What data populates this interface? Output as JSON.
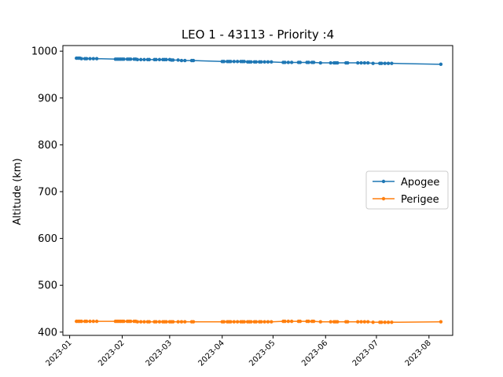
{
  "chart_data": {
    "type": "line",
    "title": "LEO 1 - 43113 - Priority :4",
    "xlabel": "",
    "ylabel": "Altitude (km)",
    "ylim": [
      393,
      1012
    ],
    "xlim": [
      "2022-12-28",
      "2023-08-15"
    ],
    "yticks": [
      400,
      500,
      600,
      700,
      800,
      900,
      1000
    ],
    "xticks": [
      "2023-01",
      "2023-02",
      "2023-03",
      "2023-04",
      "2023-05",
      "2023-06",
      "2023-07",
      "2023-08"
    ],
    "grid": false,
    "legend_position": "center-right",
    "series": [
      {
        "name": "Apogee",
        "color": "#1f77b4",
        "marker": "circle",
        "points": [
          [
            "2023-01-05",
            985
          ],
          [
            "2023-01-06",
            985
          ],
          [
            "2023-01-07",
            985
          ],
          [
            "2023-01-08",
            984
          ],
          [
            "2023-01-10",
            984
          ],
          [
            "2023-01-11",
            984
          ],
          [
            "2023-01-13",
            984
          ],
          [
            "2023-01-15",
            984
          ],
          [
            "2023-01-17",
            984
          ],
          [
            "2023-01-28",
            983
          ],
          [
            "2023-01-29",
            983
          ],
          [
            "2023-01-30",
            983
          ],
          [
            "2023-01-31",
            983
          ],
          [
            "2023-02-01",
            983
          ],
          [
            "2023-02-02",
            983
          ],
          [
            "2023-02-04",
            983
          ],
          [
            "2023-02-05",
            983
          ],
          [
            "2023-02-06",
            983
          ],
          [
            "2023-02-08",
            983
          ],
          [
            "2023-02-09",
            983
          ],
          [
            "2023-02-10",
            982
          ],
          [
            "2023-02-12",
            982
          ],
          [
            "2023-02-14",
            982
          ],
          [
            "2023-02-16",
            982
          ],
          [
            "2023-02-17",
            982
          ],
          [
            "2023-02-20",
            982
          ],
          [
            "2023-02-21",
            982
          ],
          [
            "2023-02-23",
            982
          ],
          [
            "2023-02-25",
            982
          ],
          [
            "2023-02-26",
            982
          ],
          [
            "2023-02-27",
            982
          ],
          [
            "2023-03-01",
            982
          ],
          [
            "2023-03-02",
            981
          ],
          [
            "2023-03-03",
            981
          ],
          [
            "2023-03-06",
            981
          ],
          [
            "2023-03-08",
            980
          ],
          [
            "2023-03-10",
            980
          ],
          [
            "2023-03-14",
            980
          ],
          [
            "2023-03-15",
            980
          ],
          [
            "2023-04-01",
            978
          ],
          [
            "2023-04-02",
            978
          ],
          [
            "2023-04-04",
            978
          ],
          [
            "2023-04-05",
            978
          ],
          [
            "2023-04-06",
            978
          ],
          [
            "2023-04-08",
            978
          ],
          [
            "2023-04-10",
            978
          ],
          [
            "2023-04-12",
            978
          ],
          [
            "2023-04-13",
            978
          ],
          [
            "2023-04-14",
            978
          ],
          [
            "2023-04-16",
            977
          ],
          [
            "2023-04-17",
            977
          ],
          [
            "2023-04-18",
            977
          ],
          [
            "2023-04-20",
            977
          ],
          [
            "2023-04-21",
            977
          ],
          [
            "2023-04-23",
            977
          ],
          [
            "2023-04-24",
            977
          ],
          [
            "2023-04-26",
            977
          ],
          [
            "2023-04-28",
            977
          ],
          [
            "2023-04-30",
            977
          ],
          [
            "2023-05-07",
            976
          ],
          [
            "2023-05-08",
            976
          ],
          [
            "2023-05-10",
            976
          ],
          [
            "2023-05-12",
            976
          ],
          [
            "2023-05-16",
            976
          ],
          [
            "2023-05-17",
            976
          ],
          [
            "2023-05-21",
            976
          ],
          [
            "2023-05-22",
            976
          ],
          [
            "2023-05-24",
            976
          ],
          [
            "2023-05-25",
            976
          ],
          [
            "2023-05-29",
            975
          ],
          [
            "2023-06-04",
            975
          ],
          [
            "2023-06-06",
            975
          ],
          [
            "2023-06-07",
            975
          ],
          [
            "2023-06-08",
            975
          ],
          [
            "2023-06-13",
            975
          ],
          [
            "2023-06-14",
            975
          ],
          [
            "2023-06-20",
            975
          ],
          [
            "2023-06-22",
            975
          ],
          [
            "2023-06-24",
            975
          ],
          [
            "2023-06-26",
            975
          ],
          [
            "2023-06-29",
            974
          ],
          [
            "2023-07-03",
            974
          ],
          [
            "2023-07-04",
            974
          ],
          [
            "2023-07-06",
            974
          ],
          [
            "2023-07-08",
            974
          ],
          [
            "2023-07-10",
            974
          ],
          [
            "2023-08-08",
            972
          ]
        ]
      },
      {
        "name": "Perigee",
        "color": "#ff7f0e",
        "marker": "circle",
        "points": [
          [
            "2023-01-05",
            423
          ],
          [
            "2023-01-06",
            423
          ],
          [
            "2023-01-07",
            423
          ],
          [
            "2023-01-08",
            423
          ],
          [
            "2023-01-10",
            423
          ],
          [
            "2023-01-11",
            423
          ],
          [
            "2023-01-13",
            423
          ],
          [
            "2023-01-15",
            423
          ],
          [
            "2023-01-17",
            423
          ],
          [
            "2023-01-28",
            423
          ],
          [
            "2023-01-29",
            423
          ],
          [
            "2023-01-30",
            423
          ],
          [
            "2023-01-31",
            423
          ],
          [
            "2023-02-01",
            423
          ],
          [
            "2023-02-02",
            423
          ],
          [
            "2023-02-04",
            423
          ],
          [
            "2023-02-05",
            423
          ],
          [
            "2023-02-06",
            423
          ],
          [
            "2023-02-08",
            423
          ],
          [
            "2023-02-09",
            423
          ],
          [
            "2023-02-10",
            422
          ],
          [
            "2023-02-12",
            422
          ],
          [
            "2023-02-14",
            422
          ],
          [
            "2023-02-16",
            422
          ],
          [
            "2023-02-17",
            422
          ],
          [
            "2023-02-20",
            422
          ],
          [
            "2023-02-21",
            422
          ],
          [
            "2023-02-23",
            422
          ],
          [
            "2023-02-25",
            422
          ],
          [
            "2023-02-26",
            422
          ],
          [
            "2023-02-27",
            422
          ],
          [
            "2023-03-01",
            422
          ],
          [
            "2023-03-02",
            422
          ],
          [
            "2023-03-03",
            422
          ],
          [
            "2023-03-06",
            422
          ],
          [
            "2023-03-08",
            422
          ],
          [
            "2023-03-10",
            422
          ],
          [
            "2023-03-14",
            422
          ],
          [
            "2023-03-15",
            422
          ],
          [
            "2023-04-01",
            422
          ],
          [
            "2023-04-02",
            422
          ],
          [
            "2023-04-04",
            422
          ],
          [
            "2023-04-05",
            422
          ],
          [
            "2023-04-06",
            422
          ],
          [
            "2023-04-08",
            422
          ],
          [
            "2023-04-10",
            422
          ],
          [
            "2023-04-12",
            422
          ],
          [
            "2023-04-13",
            422
          ],
          [
            "2023-04-14",
            422
          ],
          [
            "2023-04-16",
            422
          ],
          [
            "2023-04-17",
            422
          ],
          [
            "2023-04-18",
            422
          ],
          [
            "2023-04-20",
            422
          ],
          [
            "2023-04-21",
            422
          ],
          [
            "2023-04-23",
            422
          ],
          [
            "2023-04-24",
            422
          ],
          [
            "2023-04-26",
            422
          ],
          [
            "2023-04-28",
            422
          ],
          [
            "2023-04-30",
            422
          ],
          [
            "2023-05-07",
            423
          ],
          [
            "2023-05-08",
            423
          ],
          [
            "2023-05-10",
            423
          ],
          [
            "2023-05-12",
            423
          ],
          [
            "2023-05-16",
            423
          ],
          [
            "2023-05-17",
            423
          ],
          [
            "2023-05-21",
            423
          ],
          [
            "2023-05-22",
            423
          ],
          [
            "2023-05-24",
            423
          ],
          [
            "2023-05-25",
            423
          ],
          [
            "2023-05-29",
            422
          ],
          [
            "2023-06-04",
            422
          ],
          [
            "2023-06-06",
            422
          ],
          [
            "2023-06-07",
            422
          ],
          [
            "2023-06-08",
            422
          ],
          [
            "2023-06-13",
            422
          ],
          [
            "2023-06-14",
            422
          ],
          [
            "2023-06-20",
            422
          ],
          [
            "2023-06-22",
            422
          ],
          [
            "2023-06-24",
            422
          ],
          [
            "2023-06-26",
            422
          ],
          [
            "2023-06-29",
            421
          ],
          [
            "2023-07-03",
            421
          ],
          [
            "2023-07-04",
            421
          ],
          [
            "2023-07-06",
            421
          ],
          [
            "2023-07-08",
            421
          ],
          [
            "2023-07-10",
            421
          ],
          [
            "2023-08-08",
            422
          ]
        ]
      }
    ]
  }
}
